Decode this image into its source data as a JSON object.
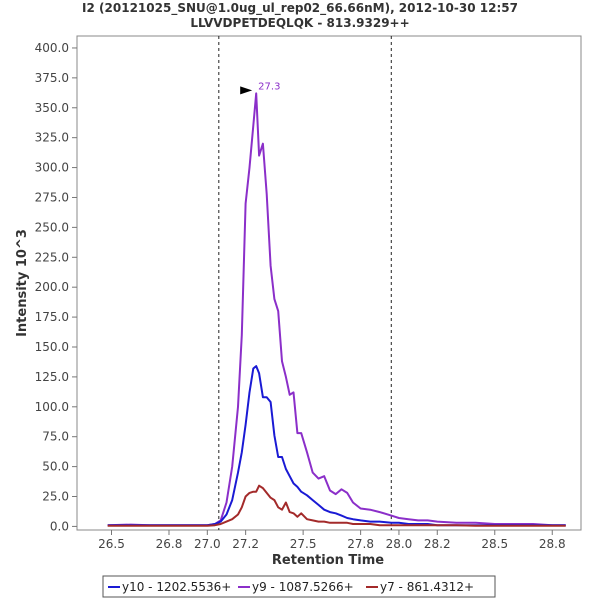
{
  "chart_data": {
    "type": "line",
    "title": "I2 (20121025_SNU@1.0ug_ul_rep02_66.66nM), 2012-10-30 12:57",
    "subtitle": "LLVVDPETDEQLQK - 813.9329++",
    "xlabel": "Retention Time",
    "ylabel": "Intensity 10^3",
    "xlim": [
      26.32,
      28.95
    ],
    "ylim": [
      -3,
      410
    ],
    "xticks": [
      "26.5",
      "26.8",
      "27.0",
      "27.2",
      "27.5",
      "27.8",
      "28.0",
      "28.2",
      "28.5",
      "28.8"
    ],
    "yticks": [
      "0.0",
      "25.0",
      "50.0",
      "75.0",
      "100.0",
      "125.0",
      "150.0",
      "175.0",
      "200.0",
      "225.0",
      "250.0",
      "275.0",
      "300.0",
      "325.0",
      "350.0",
      "375.0",
      "400.0"
    ],
    "vlines": [
      27.06,
      27.96
    ],
    "peak_annotation": {
      "text": "27.3",
      "x": 27.255,
      "y": 362,
      "color": "#8b2fc9"
    },
    "series": [
      {
        "name": "y9 - 1087.5266+",
        "color": "#8b2fc9",
        "x": [
          26.48,
          26.6,
          26.7,
          26.8,
          26.9,
          27.0,
          27.04,
          27.07,
          27.1,
          27.13,
          27.16,
          27.18,
          27.2,
          27.22,
          27.24,
          27.255,
          27.27,
          27.29,
          27.31,
          27.33,
          27.35,
          27.37,
          27.39,
          27.41,
          27.43,
          27.45,
          27.47,
          27.49,
          27.52,
          27.55,
          27.58,
          27.61,
          27.64,
          27.67,
          27.7,
          27.73,
          27.76,
          27.8,
          27.85,
          27.9,
          27.96,
          28.0,
          28.05,
          28.1,
          28.15,
          28.2,
          28.3,
          28.4,
          28.5,
          28.6,
          28.7,
          28.8,
          28.87
        ],
        "values": [
          1,
          1.5,
          1,
          1,
          1,
          1,
          2,
          5,
          20,
          50,
          100,
          160,
          270,
          300,
          335,
          362,
          310,
          320,
          278,
          218,
          190,
          180,
          138,
          125,
          110,
          112,
          78,
          78,
          62,
          45,
          40,
          42,
          30,
          27,
          31,
          28,
          20,
          15,
          14,
          12,
          9,
          7,
          6,
          5,
          5,
          4,
          3,
          3,
          2,
          2,
          2,
          1,
          1
        ]
      },
      {
        "name": "y10 - 1202.5536+",
        "color": "#1a1ad4",
        "x": [
          26.48,
          26.6,
          26.7,
          26.8,
          26.9,
          27.0,
          27.04,
          27.07,
          27.1,
          27.13,
          27.16,
          27.18,
          27.2,
          27.22,
          27.24,
          27.255,
          27.27,
          27.29,
          27.31,
          27.33,
          27.35,
          27.37,
          27.39,
          27.41,
          27.43,
          27.45,
          27.47,
          27.49,
          27.52,
          27.55,
          27.58,
          27.61,
          27.64,
          27.67,
          27.7,
          27.73,
          27.76,
          27.8,
          27.85,
          27.9,
          27.96,
          28.0,
          28.05,
          28.1,
          28.15,
          28.2,
          28.3,
          28.4,
          28.5,
          28.6,
          28.7,
          28.8,
          28.87
        ],
        "values": [
          1,
          1,
          1,
          1,
          1,
          1,
          2,
          4,
          10,
          22,
          45,
          62,
          85,
          112,
          132,
          134,
          128,
          108,
          108,
          104,
          76,
          58,
          58,
          48,
          42,
          36,
          33,
          29,
          26,
          22,
          18,
          14,
          12,
          11,
          9,
          7,
          6,
          5,
          4,
          4,
          3,
          3,
          2,
          2,
          2,
          1,
          1,
          1,
          1,
          1,
          1,
          1,
          1
        ]
      },
      {
        "name": "y7 - 861.4312+",
        "color": "#a32a2a",
        "x": [
          26.48,
          26.6,
          26.7,
          26.8,
          26.9,
          27.0,
          27.04,
          27.07,
          27.1,
          27.13,
          27.16,
          27.18,
          27.2,
          27.22,
          27.24,
          27.255,
          27.27,
          27.29,
          27.31,
          27.33,
          27.35,
          27.37,
          27.39,
          27.41,
          27.43,
          27.45,
          27.47,
          27.49,
          27.52,
          27.55,
          27.58,
          27.61,
          27.64,
          27.67,
          27.7,
          27.73,
          27.76,
          27.8,
          27.85,
          27.9,
          27.96,
          28.0,
          28.05,
          28.1,
          28.15,
          28.2,
          28.3,
          28.4,
          28.5,
          28.6,
          28.7,
          28.8,
          28.87
        ],
        "values": [
          0.5,
          0.5,
          0.5,
          0.5,
          0.5,
          0.5,
          1,
          2,
          4,
          6,
          10,
          16,
          25,
          28,
          29,
          29,
          34,
          32,
          28,
          24,
          22,
          16,
          14,
          20,
          12,
          11,
          8,
          11,
          6,
          5,
          4,
          4,
          3,
          3,
          3,
          3,
          2,
          2,
          2,
          1,
          1,
          1,
          1,
          1,
          1,
          1,
          1,
          0.5,
          0.5,
          0.5,
          0.5,
          0.5,
          0.5
        ]
      }
    ],
    "legend_order": [
      1,
      0,
      2
    ],
    "legend_position": "bottom"
  }
}
